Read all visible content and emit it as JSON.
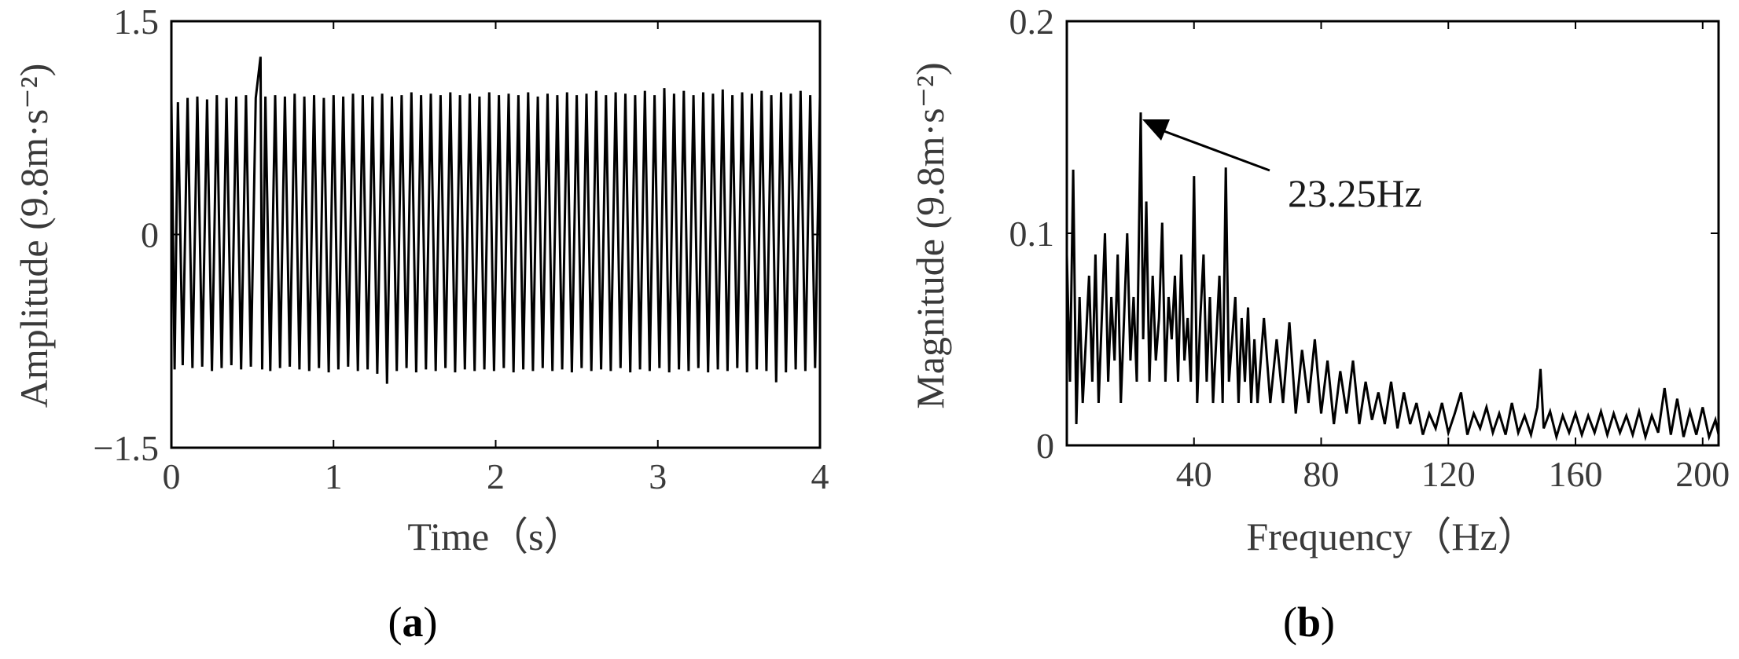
{
  "chart_data": [
    {
      "type": "line",
      "panel_label": "a",
      "title": "",
      "xlabel": "Time（s）",
      "ylabel": "Amplitude (9.8m·s⁻²)",
      "xlim": [
        0,
        4
      ],
      "ylim": [
        -1.5,
        1.5
      ],
      "xticks": [
        0,
        1,
        2,
        3,
        4
      ],
      "yticks": [
        -1.5,
        0,
        1.5
      ],
      "xtick_labels": [
        "0",
        "1",
        "2",
        "3",
        "4"
      ],
      "ytick_labels": [
        "−1.5",
        "0",
        "1.5"
      ],
      "grid": false,
      "line_color": "#000000",
      "signal_description": "dense square-wave-like vibration switching between about +0.95 and -0.95",
      "series": [
        {
          "x": [
            0,
            0.02,
            0.04,
            0.07,
            0.1,
            0.13,
            0.16,
            0.19,
            0.22,
            0.25,
            0.28,
            0.31,
            0.34,
            0.37,
            0.4,
            0.43,
            0.46,
            0.49,
            0.52,
            0.55,
            0.56,
            0.58,
            0.61,
            0.64,
            0.67,
            0.7,
            0.73,
            0.76,
            0.79,
            0.82,
            0.85,
            0.88,
            0.91,
            0.94,
            0.97,
            1.0,
            1.03,
            1.06,
            1.09,
            1.12,
            1.15,
            1.18,
            1.21,
            1.24,
            1.27,
            1.3,
            1.33,
            1.36,
            1.39,
            1.42,
            1.45,
            1.48,
            1.51,
            1.54,
            1.57,
            1.6,
            1.63,
            1.66,
            1.69,
            1.72,
            1.75,
            1.78,
            1.81,
            1.84,
            1.87,
            1.9,
            1.93,
            1.96,
            1.99,
            2.02,
            2.05,
            2.08,
            2.11,
            2.14,
            2.17,
            2.2,
            2.23,
            2.26,
            2.29,
            2.32,
            2.35,
            2.38,
            2.41,
            2.44,
            2.47,
            2.5,
            2.53,
            2.56,
            2.59,
            2.62,
            2.65,
            2.68,
            2.71,
            2.74,
            2.77,
            2.8,
            2.83,
            2.86,
            2.89,
            2.92,
            2.95,
            2.98,
            3.01,
            3.04,
            3.07,
            3.1,
            3.13,
            3.16,
            3.19,
            3.22,
            3.25,
            3.28,
            3.31,
            3.34,
            3.37,
            3.4,
            3.43,
            3.46,
            3.49,
            3.52,
            3.55,
            3.58,
            3.61,
            3.64,
            3.67,
            3.7,
            3.73,
            3.76,
            3.79,
            3.82,
            3.85,
            3.88,
            3.91,
            3.94,
            3.97,
            4.0
          ],
          "y": [
            0.95,
            -0.95,
            0.93,
            -0.92,
            0.96,
            -0.94,
            0.97,
            -0.93,
            0.95,
            -0.96,
            0.98,
            -0.94,
            0.96,
            -0.92,
            0.97,
            -0.95,
            0.98,
            -0.93,
            0.96,
            1.25,
            -0.95,
            0.97,
            -0.96,
            0.98,
            -0.94,
            0.97,
            -0.93,
            0.99,
            -0.95,
            0.97,
            -0.96,
            0.98,
            -0.94,
            0.96,
            -0.97,
            0.98,
            -0.95,
            0.97,
            -0.93,
            0.99,
            -0.96,
            0.98,
            -0.95,
            0.97,
            -0.98,
            0.99,
            -1.05,
            0.97,
            -0.96,
            0.98,
            -0.94,
            1.0,
            -0.97,
            0.98,
            -0.95,
            0.99,
            -0.96,
            0.98,
            -0.94,
            1.0,
            -0.97,
            0.98,
            -0.95,
            0.99,
            -0.96,
            0.97,
            -0.95,
            1.0,
            -0.96,
            0.98,
            -0.94,
            0.99,
            -0.97,
            0.98,
            -0.95,
            1.0,
            -0.96,
            0.97,
            -0.94,
            0.99,
            -0.96,
            0.98,
            -0.95,
            1.0,
            -0.97,
            0.98,
            -0.94,
            0.99,
            -0.96,
            1.01,
            -0.95,
            0.98,
            -0.96,
            1.0,
            -0.94,
            0.99,
            -0.97,
            0.98,
            -0.95,
            1.01,
            -0.96,
            0.98,
            -0.94,
            1.03,
            -0.97,
            0.99,
            -0.95,
            1.01,
            -0.96,
            0.98,
            -0.94,
            1.0,
            -0.97,
            0.99,
            -0.95,
            1.02,
            -0.96,
            0.98,
            -0.94,
            1.0,
            -0.97,
            0.99,
            -0.95,
            1.01,
            -0.96,
            0.98,
            -1.04,
            1.0,
            -0.97,
            0.99,
            -0.95,
            1.01,
            -0.96,
            0.98,
            -0.94,
            0.97
          ]
        }
      ]
    },
    {
      "type": "line",
      "panel_label": "b",
      "title": "",
      "xlabel": "Frequency（Hz）",
      "ylabel": "Magnitude (9.8m·s⁻²)",
      "xlim": [
        0,
        205
      ],
      "ylim": [
        0,
        0.2
      ],
      "xticks": [
        40,
        80,
        120,
        160,
        200
      ],
      "yticks": [
        0,
        0.1,
        0.2
      ],
      "xtick_labels": [
        "40",
        "80",
        "120",
        "160",
        "200"
      ],
      "ytick_labels": [
        "0",
        "0.1",
        "0.2"
      ],
      "grid": false,
      "line_color": "#000000",
      "annotation": {
        "text": "23.25Hz",
        "x": 23.25,
        "y": 0.157
      },
      "series": [
        {
          "x": [
            0,
            1,
            2,
            3,
            4,
            5,
            6,
            7,
            8,
            9,
            10,
            11,
            12,
            13,
            14,
            15,
            16,
            17,
            18,
            19,
            20,
            21,
            22,
            23.25,
            24,
            25,
            26,
            27,
            28,
            29,
            30,
            31,
            32,
            33,
            34,
            35,
            36,
            37,
            38,
            39,
            40,
            41,
            42,
            43,
            44,
            45,
            46,
            47,
            48,
            49,
            50,
            51,
            52,
            53,
            54,
            55,
            56,
            57,
            58,
            59,
            60,
            62,
            64,
            66,
            68,
            70,
            72,
            74,
            76,
            78,
            80,
            82,
            84,
            86,
            88,
            90,
            92,
            94,
            96,
            98,
            100,
            102,
            104,
            106,
            108,
            110,
            112,
            114,
            116,
            118,
            120,
            122,
            124,
            126,
            128,
            130,
            132,
            134,
            136,
            138,
            140,
            142,
            144,
            146,
            148,
            149,
            150,
            152,
            154,
            156,
            158,
            160,
            162,
            164,
            166,
            168,
            170,
            172,
            174,
            176,
            178,
            180,
            182,
            184,
            186,
            188,
            190,
            192,
            194,
            196,
            198,
            200,
            202,
            204,
            205
          ],
          "y": [
            0.09,
            0.03,
            0.13,
            0.01,
            0.07,
            0.02,
            0.05,
            0.08,
            0.03,
            0.09,
            0.02,
            0.06,
            0.1,
            0.03,
            0.07,
            0.04,
            0.09,
            0.02,
            0.06,
            0.1,
            0.04,
            0.07,
            0.03,
            0.157,
            0.05,
            0.115,
            0.03,
            0.08,
            0.04,
            0.06,
            0.105,
            0.03,
            0.07,
            0.05,
            0.08,
            0.03,
            0.09,
            0.04,
            0.06,
            0.03,
            0.127,
            0.02,
            0.06,
            0.09,
            0.03,
            0.07,
            0.02,
            0.05,
            0.08,
            0.02,
            0.131,
            0.03,
            0.05,
            0.07,
            0.02,
            0.06,
            0.03,
            0.065,
            0.02,
            0.05,
            0.02,
            0.06,
            0.02,
            0.05,
            0.02,
            0.058,
            0.015,
            0.045,
            0.02,
            0.05,
            0.015,
            0.04,
            0.01,
            0.035,
            0.015,
            0.04,
            0.01,
            0.03,
            0.012,
            0.025,
            0.01,
            0.03,
            0.008,
            0.025,
            0.01,
            0.02,
            0.005,
            0.015,
            0.008,
            0.02,
            0.006,
            0.015,
            0.025,
            0.005,
            0.015,
            0.008,
            0.018,
            0.006,
            0.015,
            0.005,
            0.02,
            0.006,
            0.014,
            0.005,
            0.018,
            0.036,
            0.008,
            0.016,
            0.004,
            0.014,
            0.006,
            0.015,
            0.005,
            0.014,
            0.006,
            0.016,
            0.005,
            0.015,
            0.006,
            0.014,
            0.005,
            0.016,
            0.004,
            0.014,
            0.006,
            0.027,
            0.005,
            0.022,
            0.004,
            0.016,
            0.005,
            0.018,
            0.004,
            0.012,
            0.005
          ]
        }
      ]
    }
  ],
  "labels": {
    "a_open": "(",
    "a_letter": "a",
    "a_close": ")",
    "b_open": "(",
    "b_letter": "b",
    "b_close": ")"
  }
}
